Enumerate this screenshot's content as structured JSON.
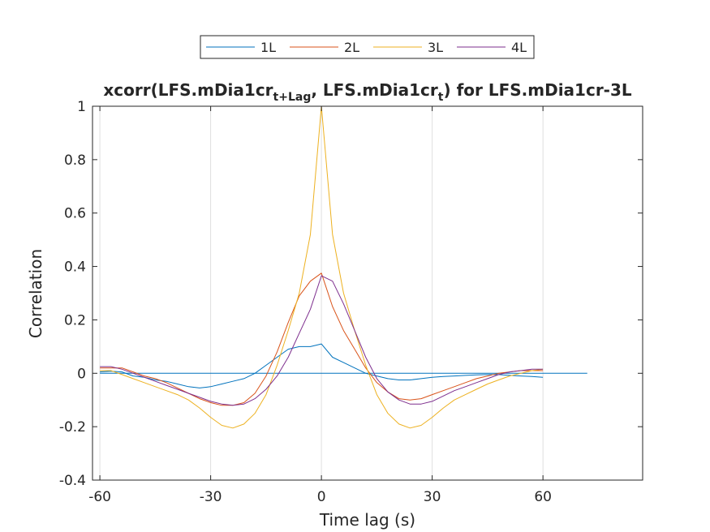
{
  "chart_data": {
    "type": "line",
    "title": {
      "prefix": "xcorr(LFS.mDia1cr",
      "sub1": "t+Lag",
      "middle": ", LFS.mDia1cr",
      "sub2": "t",
      "suffix": ") for LFS.mDia1cr-3L"
    },
    "xlabel": "Time lag (s)",
    "ylabel": "Correlation",
    "xlim": [
      -62,
      87
    ],
    "ylim": [
      -0.4,
      1
    ],
    "xticks": [
      -60,
      -30,
      0,
      30,
      60
    ],
    "xtick_labels": [
      "-60",
      "-30",
      "0",
      "30",
      "60"
    ],
    "yticks": [
      -0.4,
      -0.2,
      0,
      0.2,
      0.4,
      0.6,
      0.8,
      1
    ],
    "ytick_labels": [
      "-0.4",
      "-0.2",
      "0",
      "0.2",
      "0.4",
      "0.6",
      "0.8",
      "1"
    ],
    "grid": "x-only",
    "legend_position": "top-outside",
    "zero_line": {
      "x_start": -60,
      "x_end": 72,
      "y": 0,
      "color": "#0072BD"
    },
    "x": [
      -60,
      -57,
      -54,
      -51,
      -48,
      -45,
      -42,
      -39,
      -36,
      -33,
      -30,
      -27,
      -24,
      -21,
      -18,
      -15,
      -12,
      -9,
      -6,
      -3,
      0,
      3,
      6,
      9,
      12,
      15,
      18,
      21,
      24,
      27,
      30,
      33,
      36,
      39,
      42,
      45,
      48,
      51,
      54,
      57,
      60
    ],
    "series": [
      {
        "name": "1L",
        "color": "#0072BD",
        "values": [
          0.005,
          0.008,
          0.005,
          -0.01,
          -0.015,
          -0.025,
          -0.03,
          -0.04,
          -0.05,
          -0.055,
          -0.05,
          -0.04,
          -0.03,
          -0.02,
          0.0,
          0.03,
          0.06,
          0.09,
          0.1,
          0.1,
          0.11,
          0.06,
          0.04,
          0.02,
          0.0,
          -0.01,
          -0.02,
          -0.025,
          -0.025,
          -0.02,
          -0.015,
          -0.012,
          -0.01,
          -0.008,
          -0.006,
          -0.005,
          -0.005,
          -0.008,
          -0.01,
          -0.012,
          -0.015
        ]
      },
      {
        "name": "2L",
        "color": "#D95319",
        "values": [
          0.02,
          0.02,
          0.02,
          0.005,
          -0.01,
          -0.02,
          -0.035,
          -0.055,
          -0.075,
          -0.095,
          -0.11,
          -0.12,
          -0.12,
          -0.11,
          -0.075,
          -0.01,
          0.08,
          0.19,
          0.29,
          0.345,
          0.375,
          0.25,
          0.16,
          0.09,
          0.02,
          -0.035,
          -0.07,
          -0.095,
          -0.1,
          -0.095,
          -0.08,
          -0.065,
          -0.05,
          -0.035,
          -0.02,
          -0.01,
          0.0,
          0.005,
          0.01,
          0.01,
          0.01
        ]
      },
      {
        "name": "3L",
        "color": "#EDB120",
        "values": [
          0.01,
          0.01,
          -0.005,
          -0.02,
          -0.035,
          -0.05,
          -0.065,
          -0.08,
          -0.1,
          -0.13,
          -0.165,
          -0.195,
          -0.205,
          -0.19,
          -0.15,
          -0.08,
          0.03,
          0.16,
          0.3,
          0.52,
          1.0,
          0.52,
          0.3,
          0.16,
          0.03,
          -0.08,
          -0.15,
          -0.19,
          -0.205,
          -0.195,
          -0.165,
          -0.13,
          -0.1,
          -0.08,
          -0.06,
          -0.04,
          -0.025,
          -0.01,
          0.0,
          0.01,
          0.015
        ]
      },
      {
        "name": "4L",
        "color": "#7E2F8E",
        "values": [
          0.025,
          0.025,
          0.015,
          0.0,
          -0.015,
          -0.03,
          -0.045,
          -0.06,
          -0.075,
          -0.09,
          -0.105,
          -0.115,
          -0.12,
          -0.115,
          -0.095,
          -0.06,
          -0.01,
          0.06,
          0.15,
          0.24,
          0.365,
          0.345,
          0.26,
          0.16,
          0.06,
          -0.02,
          -0.07,
          -0.1,
          -0.115,
          -0.115,
          -0.105,
          -0.085,
          -0.065,
          -0.05,
          -0.035,
          -0.02,
          -0.005,
          0.005,
          0.01,
          0.015,
          0.015
        ]
      }
    ]
  }
}
